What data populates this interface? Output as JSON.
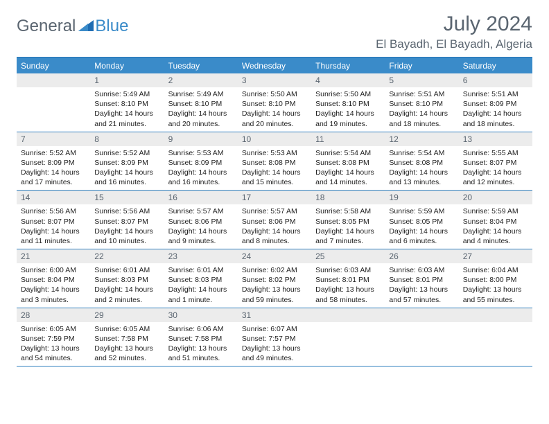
{
  "brand": {
    "part1": "General",
    "part2": "Blue"
  },
  "title": "July 2024",
  "location": "El Bayadh, El Bayadh, Algeria",
  "colors": {
    "header_bg": "#3a8bc9",
    "header_text": "#ffffff",
    "rule": "#2f7fbf",
    "daynum_bg": "#ececec",
    "text_muted": "#5a6570",
    "text": "#222222",
    "page_bg": "#ffffff"
  },
  "day_names": [
    "Sunday",
    "Monday",
    "Tuesday",
    "Wednesday",
    "Thursday",
    "Friday",
    "Saturday"
  ],
  "weeks": [
    [
      {
        "n": "",
        "sr": "",
        "ss": "",
        "dl": ""
      },
      {
        "n": "1",
        "sr": "Sunrise: 5:49 AM",
        "ss": "Sunset: 8:10 PM",
        "dl": "Daylight: 14 hours and 21 minutes."
      },
      {
        "n": "2",
        "sr": "Sunrise: 5:49 AM",
        "ss": "Sunset: 8:10 PM",
        "dl": "Daylight: 14 hours and 20 minutes."
      },
      {
        "n": "3",
        "sr": "Sunrise: 5:50 AM",
        "ss": "Sunset: 8:10 PM",
        "dl": "Daylight: 14 hours and 20 minutes."
      },
      {
        "n": "4",
        "sr": "Sunrise: 5:50 AM",
        "ss": "Sunset: 8:10 PM",
        "dl": "Daylight: 14 hours and 19 minutes."
      },
      {
        "n": "5",
        "sr": "Sunrise: 5:51 AM",
        "ss": "Sunset: 8:10 PM",
        "dl": "Daylight: 14 hours and 18 minutes."
      },
      {
        "n": "6",
        "sr": "Sunrise: 5:51 AM",
        "ss": "Sunset: 8:09 PM",
        "dl": "Daylight: 14 hours and 18 minutes."
      }
    ],
    [
      {
        "n": "7",
        "sr": "Sunrise: 5:52 AM",
        "ss": "Sunset: 8:09 PM",
        "dl": "Daylight: 14 hours and 17 minutes."
      },
      {
        "n": "8",
        "sr": "Sunrise: 5:52 AM",
        "ss": "Sunset: 8:09 PM",
        "dl": "Daylight: 14 hours and 16 minutes."
      },
      {
        "n": "9",
        "sr": "Sunrise: 5:53 AM",
        "ss": "Sunset: 8:09 PM",
        "dl": "Daylight: 14 hours and 16 minutes."
      },
      {
        "n": "10",
        "sr": "Sunrise: 5:53 AM",
        "ss": "Sunset: 8:08 PM",
        "dl": "Daylight: 14 hours and 15 minutes."
      },
      {
        "n": "11",
        "sr": "Sunrise: 5:54 AM",
        "ss": "Sunset: 8:08 PM",
        "dl": "Daylight: 14 hours and 14 minutes."
      },
      {
        "n": "12",
        "sr": "Sunrise: 5:54 AM",
        "ss": "Sunset: 8:08 PM",
        "dl": "Daylight: 14 hours and 13 minutes."
      },
      {
        "n": "13",
        "sr": "Sunrise: 5:55 AM",
        "ss": "Sunset: 8:07 PM",
        "dl": "Daylight: 14 hours and 12 minutes."
      }
    ],
    [
      {
        "n": "14",
        "sr": "Sunrise: 5:56 AM",
        "ss": "Sunset: 8:07 PM",
        "dl": "Daylight: 14 hours and 11 minutes."
      },
      {
        "n": "15",
        "sr": "Sunrise: 5:56 AM",
        "ss": "Sunset: 8:07 PM",
        "dl": "Daylight: 14 hours and 10 minutes."
      },
      {
        "n": "16",
        "sr": "Sunrise: 5:57 AM",
        "ss": "Sunset: 8:06 PM",
        "dl": "Daylight: 14 hours and 9 minutes."
      },
      {
        "n": "17",
        "sr": "Sunrise: 5:57 AM",
        "ss": "Sunset: 8:06 PM",
        "dl": "Daylight: 14 hours and 8 minutes."
      },
      {
        "n": "18",
        "sr": "Sunrise: 5:58 AM",
        "ss": "Sunset: 8:05 PM",
        "dl": "Daylight: 14 hours and 7 minutes."
      },
      {
        "n": "19",
        "sr": "Sunrise: 5:59 AM",
        "ss": "Sunset: 8:05 PM",
        "dl": "Daylight: 14 hours and 6 minutes."
      },
      {
        "n": "20",
        "sr": "Sunrise: 5:59 AM",
        "ss": "Sunset: 8:04 PM",
        "dl": "Daylight: 14 hours and 4 minutes."
      }
    ],
    [
      {
        "n": "21",
        "sr": "Sunrise: 6:00 AM",
        "ss": "Sunset: 8:04 PM",
        "dl": "Daylight: 14 hours and 3 minutes."
      },
      {
        "n": "22",
        "sr": "Sunrise: 6:01 AM",
        "ss": "Sunset: 8:03 PM",
        "dl": "Daylight: 14 hours and 2 minutes."
      },
      {
        "n": "23",
        "sr": "Sunrise: 6:01 AM",
        "ss": "Sunset: 8:03 PM",
        "dl": "Daylight: 14 hours and 1 minute."
      },
      {
        "n": "24",
        "sr": "Sunrise: 6:02 AM",
        "ss": "Sunset: 8:02 PM",
        "dl": "Daylight: 13 hours and 59 minutes."
      },
      {
        "n": "25",
        "sr": "Sunrise: 6:03 AM",
        "ss": "Sunset: 8:01 PM",
        "dl": "Daylight: 13 hours and 58 minutes."
      },
      {
        "n": "26",
        "sr": "Sunrise: 6:03 AM",
        "ss": "Sunset: 8:01 PM",
        "dl": "Daylight: 13 hours and 57 minutes."
      },
      {
        "n": "27",
        "sr": "Sunrise: 6:04 AM",
        "ss": "Sunset: 8:00 PM",
        "dl": "Daylight: 13 hours and 55 minutes."
      }
    ],
    [
      {
        "n": "28",
        "sr": "Sunrise: 6:05 AM",
        "ss": "Sunset: 7:59 PM",
        "dl": "Daylight: 13 hours and 54 minutes."
      },
      {
        "n": "29",
        "sr": "Sunrise: 6:05 AM",
        "ss": "Sunset: 7:58 PM",
        "dl": "Daylight: 13 hours and 52 minutes."
      },
      {
        "n": "30",
        "sr": "Sunrise: 6:06 AM",
        "ss": "Sunset: 7:58 PM",
        "dl": "Daylight: 13 hours and 51 minutes."
      },
      {
        "n": "31",
        "sr": "Sunrise: 6:07 AM",
        "ss": "Sunset: 7:57 PM",
        "dl": "Daylight: 13 hours and 49 minutes."
      },
      {
        "n": "",
        "sr": "",
        "ss": "",
        "dl": ""
      },
      {
        "n": "",
        "sr": "",
        "ss": "",
        "dl": ""
      },
      {
        "n": "",
        "sr": "",
        "ss": "",
        "dl": ""
      }
    ]
  ]
}
